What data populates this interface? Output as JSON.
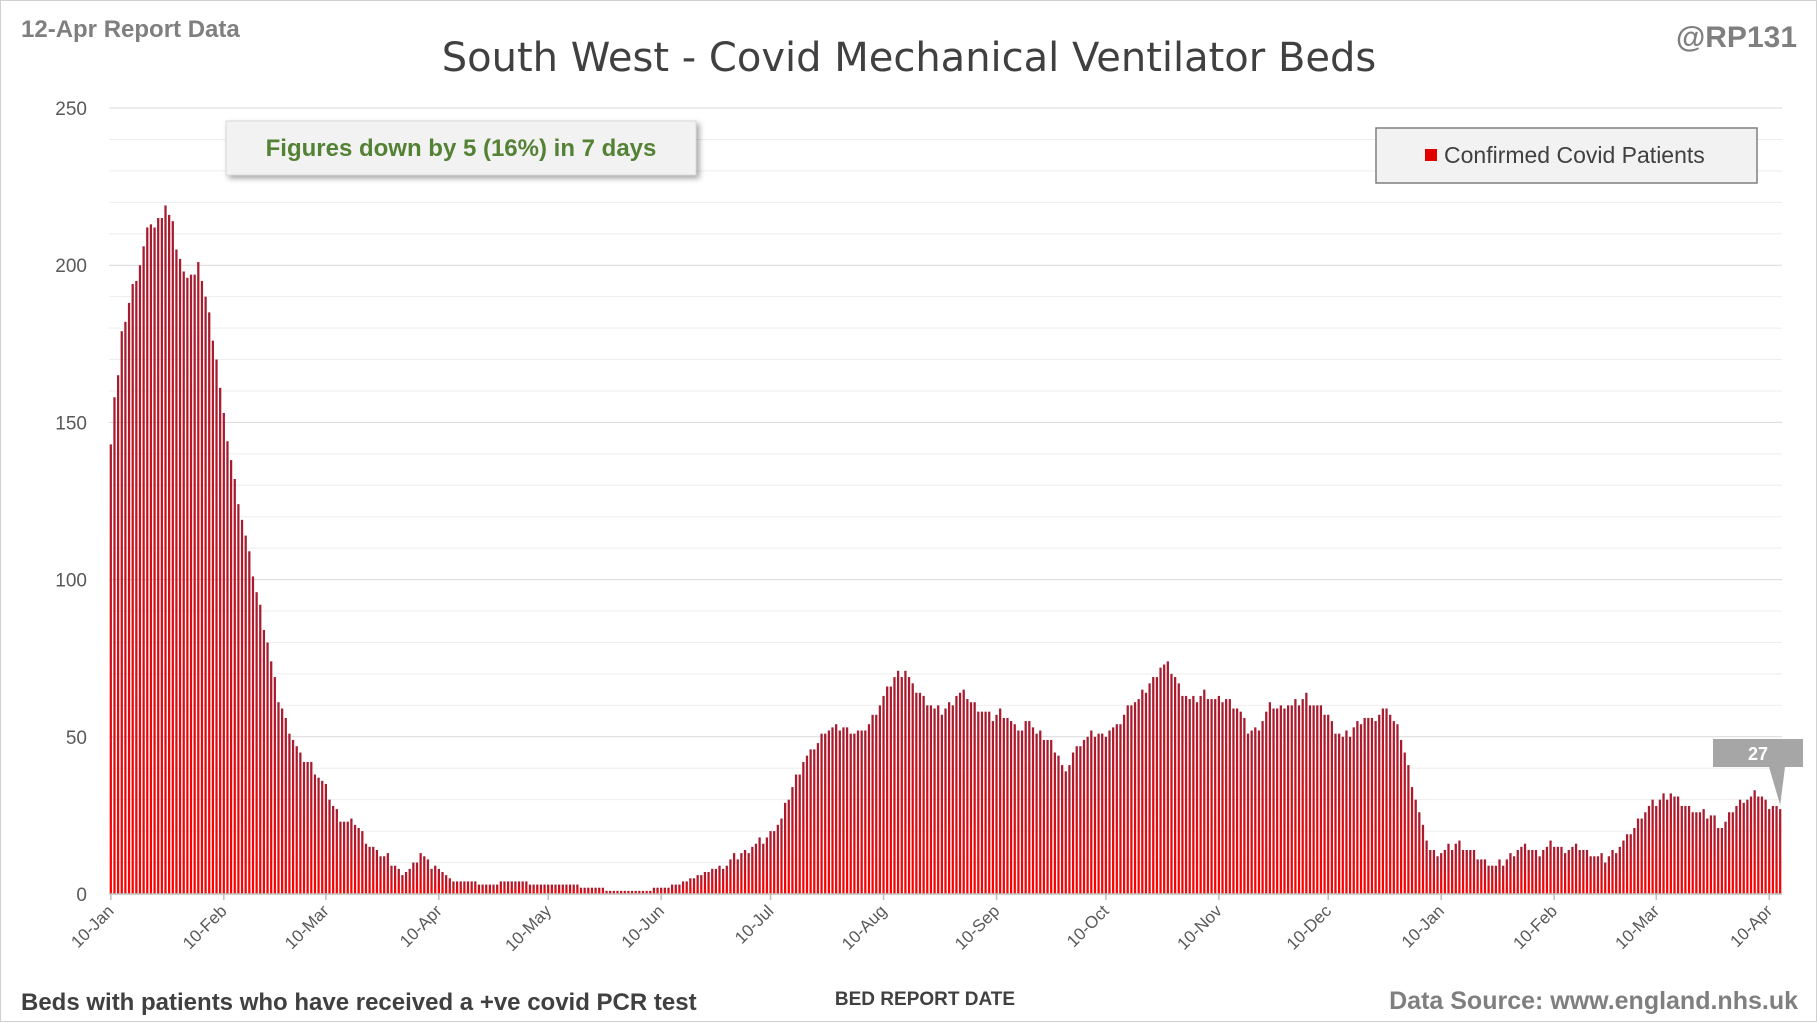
{
  "header": {
    "report_label": "12-Apr Report Data",
    "handle": "@RP131",
    "title": "South West - Covid Mechanical Ventilator Beds"
  },
  "annotation": {
    "text": "Figures down by 5 (16%) in 7 days"
  },
  "legend": {
    "label": "Confirmed Covid Patients"
  },
  "callout": {
    "value": "27"
  },
  "footer": {
    "left": "Beds with patients who have received a +ve covid PCR test",
    "axis_title": "BED REPORT DATE",
    "source": "Data Source: www.england.nhs.uk"
  },
  "colors": {
    "bar_top": "#a51c30",
    "bar_bottom": "#ff0000",
    "legend_marker": "#e00000",
    "annotation_text": "#548235",
    "callout_bg": "#a6a6a6"
  },
  "chart_data": {
    "type": "bar",
    "title": "South West - Covid Mechanical Ventilator Beds",
    "xlabel": "BED REPORT DATE",
    "ylabel": "",
    "ylim": [
      0,
      250
    ],
    "yticks": [
      0,
      50,
      100,
      150,
      200,
      250
    ],
    "x_tick_labels": [
      "10-Jan",
      "10-Feb",
      "10-Mar",
      "10-Apr",
      "10-May",
      "10-Jun",
      "10-Jul",
      "10-Aug",
      "10-Sep",
      "10-Oct",
      "10-Nov",
      "10-Dec",
      "10-Jan",
      "10-Feb",
      "10-Mar",
      "10-Apr"
    ],
    "x_tick_day_index": [
      0,
      31,
      59,
      90,
      120,
      151,
      181,
      212,
      243,
      273,
      304,
      334,
      365,
      396,
      424,
      455
    ],
    "start_date": "10-Jan",
    "num_days": 459,
    "grid": true,
    "legend_position": "top-right",
    "anchors": [
      [
        0,
        144
      ],
      [
        1,
        158
      ],
      [
        2,
        165
      ],
      [
        3,
        178
      ],
      [
        4,
        183
      ],
      [
        5,
        188
      ],
      [
        6,
        193
      ],
      [
        8,
        200
      ],
      [
        10,
        211
      ],
      [
        11,
        214
      ],
      [
        12,
        212
      ],
      [
        14,
        216
      ],
      [
        15,
        219
      ],
      [
        17,
        213
      ],
      [
        18,
        206
      ],
      [
        20,
        197
      ],
      [
        23,
        197
      ],
      [
        24,
        200
      ],
      [
        25,
        196
      ],
      [
        27,
        184
      ],
      [
        29,
        170
      ],
      [
        31,
        152
      ],
      [
        34,
        131
      ],
      [
        37,
        114
      ],
      [
        40,
        96
      ],
      [
        43,
        80
      ],
      [
        46,
        62
      ],
      [
        49,
        52
      ],
      [
        52,
        44
      ],
      [
        55,
        41
      ],
      [
        58,
        36
      ],
      [
        61,
        28
      ],
      [
        64,
        23
      ],
      [
        67,
        23
      ],
      [
        70,
        17
      ],
      [
        73,
        13
      ],
      [
        76,
        12
      ],
      [
        78,
        9
      ],
      [
        80,
        6
      ],
      [
        83,
        9
      ],
      [
        85,
        13
      ],
      [
        87,
        10
      ],
      [
        90,
        8
      ],
      [
        94,
        4
      ],
      [
        98,
        4
      ],
      [
        103,
        3
      ],
      [
        110,
        4
      ],
      [
        118,
        3
      ],
      [
        125,
        3
      ],
      [
        132,
        2
      ],
      [
        138,
        1
      ],
      [
        145,
        1
      ],
      [
        152,
        2
      ],
      [
        156,
        3
      ],
      [
        160,
        5
      ],
      [
        164,
        7
      ],
      [
        168,
        9
      ],
      [
        172,
        12
      ],
      [
        176,
        15
      ],
      [
        180,
        18
      ],
      [
        184,
        24
      ],
      [
        186,
        31
      ],
      [
        188,
        37
      ],
      [
        190,
        42
      ],
      [
        192,
        45
      ],
      [
        194,
        48
      ],
      [
        196,
        52
      ],
      [
        199,
        53
      ],
      [
        203,
        52
      ],
      [
        206,
        51
      ],
      [
        208,
        54
      ],
      [
        210,
        58
      ],
      [
        212,
        63
      ],
      [
        214,
        67
      ],
      [
        216,
        70
      ],
      [
        218,
        71
      ],
      [
        220,
        66
      ],
      [
        222,
        64
      ],
      [
        224,
        61
      ],
      [
        226,
        59
      ],
      [
        228,
        58
      ],
      [
        230,
        60
      ],
      [
        232,
        63
      ],
      [
        234,
        64
      ],
      [
        236,
        61
      ],
      [
        238,
        59
      ],
      [
        240,
        58
      ],
      [
        242,
        56
      ],
      [
        244,
        58
      ],
      [
        246,
        56
      ],
      [
        248,
        53
      ],
      [
        250,
        52
      ],
      [
        252,
        56
      ],
      [
        254,
        51
      ],
      [
        256,
        50
      ],
      [
        258,
        48
      ],
      [
        260,
        44
      ],
      [
        262,
        38
      ],
      [
        264,
        45
      ],
      [
        266,
        48
      ],
      [
        268,
        50
      ],
      [
        270,
        51
      ],
      [
        272,
        50
      ],
      [
        274,
        52
      ],
      [
        276,
        53
      ],
      [
        278,
        57
      ],
      [
        280,
        61
      ],
      [
        282,
        62
      ],
      [
        284,
        65
      ],
      [
        286,
        68
      ],
      [
        288,
        72
      ],
      [
        290,
        73
      ],
      [
        292,
        69
      ],
      [
        294,
        64
      ],
      [
        296,
        62
      ],
      [
        298,
        62
      ],
      [
        300,
        64
      ],
      [
        302,
        62
      ],
      [
        304,
        62
      ],
      [
        306,
        62
      ],
      [
        308,
        60
      ],
      [
        310,
        58
      ],
      [
        312,
        52
      ],
      [
        314,
        52
      ],
      [
        316,
        55
      ],
      [
        318,
        60
      ],
      [
        320,
        59
      ],
      [
        322,
        60
      ],
      [
        324,
        60
      ],
      [
        326,
        61
      ],
      [
        328,
        63
      ],
      [
        330,
        60
      ],
      [
        332,
        59
      ],
      [
        334,
        57
      ],
      [
        336,
        52
      ],
      [
        338,
        50
      ],
      [
        340,
        51
      ],
      [
        342,
        54
      ],
      [
        344,
        56
      ],
      [
        346,
        55
      ],
      [
        348,
        57
      ],
      [
        350,
        60
      ],
      [
        352,
        55
      ],
      [
        354,
        50
      ],
      [
        356,
        40
      ],
      [
        358,
        30
      ],
      [
        360,
        21
      ],
      [
        362,
        14
      ],
      [
        364,
        13
      ],
      [
        366,
        14
      ],
      [
        368,
        15
      ],
      [
        370,
        16
      ],
      [
        372,
        14
      ],
      [
        374,
        13
      ],
      [
        376,
        11
      ],
      [
        378,
        10
      ],
      [
        380,
        9
      ],
      [
        382,
        10
      ],
      [
        384,
        12
      ],
      [
        386,
        14
      ],
      [
        388,
        15
      ],
      [
        390,
        14
      ],
      [
        392,
        13
      ],
      [
        394,
        15
      ],
      [
        396,
        16
      ],
      [
        398,
        14
      ],
      [
        400,
        14
      ],
      [
        402,
        15
      ],
      [
        404,
        14
      ],
      [
        406,
        13
      ],
      [
        408,
        12
      ],
      [
        410,
        11
      ],
      [
        412,
        13
      ],
      [
        414,
        15
      ],
      [
        416,
        18
      ],
      [
        418,
        21
      ],
      [
        420,
        25
      ],
      [
        422,
        28
      ],
      [
        424,
        29
      ],
      [
        426,
        31
      ],
      [
        428,
        32
      ],
      [
        430,
        30
      ],
      [
        432,
        28
      ],
      [
        434,
        27
      ],
      [
        436,
        26
      ],
      [
        438,
        25
      ],
      [
        440,
        24
      ],
      [
        442,
        21
      ],
      [
        444,
        25
      ],
      [
        446,
        28
      ],
      [
        448,
        30
      ],
      [
        450,
        31
      ],
      [
        452,
        32
      ],
      [
        454,
        29
      ],
      [
        456,
        28
      ],
      [
        458,
        27
      ]
    ],
    "last_value": 27
  }
}
